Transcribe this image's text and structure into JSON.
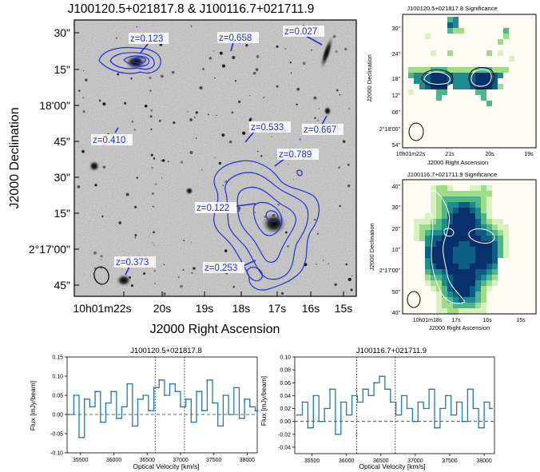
{
  "figure": {
    "title": "J100120.5+021817.8 & J100116.7+021711.9"
  },
  "main_panel": {
    "xlabel": "J2000 Right Ascension",
    "ylabel": "J2000 Declination",
    "x_ticks": [
      "10h01m22s",
      "20s",
      "19s",
      "18s",
      "17s",
      "16s",
      "15s"
    ],
    "y_ticks": [
      "30\"",
      "15\"",
      "18'00\"",
      "45\"",
      "30\"",
      "15\"",
      "2°17'00\"",
      "45\""
    ],
    "redshift_labels": [
      {
        "text": "z=0.123"
      },
      {
        "text": "z=0.658"
      },
      {
        "text": "z=0.027"
      },
      {
        "text": "z=0.410"
      },
      {
        "text": "z=0.533"
      },
      {
        "text": "z=0.667"
      },
      {
        "text": "z=0.789"
      },
      {
        "text": "z=0.122"
      },
      {
        "text": "z=0.373"
      },
      {
        "text": "z=0.253"
      }
    ]
  },
  "sig_panel_1": {
    "title": "J100120.5+021817.8 Significance",
    "xlabel": "J2000 Right Ascension",
    "ylabel": "J2000 Declination",
    "x_ticks": [
      "10h01m22s",
      "21s",
      "20s",
      "19s"
    ],
    "y_ticks": [
      "30\"",
      "24\"",
      "18\"",
      "12\"",
      "06\"",
      "2°18'00\"",
      "54\""
    ]
  },
  "sig_panel_2": {
    "title": "J100116.7+021711.9 Significance",
    "xlabel": "J2000 Right Ascension",
    "ylabel": "J2000 Declination",
    "x_ticks": [
      "10h01m18s",
      "17s",
      "16s",
      "15s"
    ],
    "y_ticks": [
      "40\"",
      "30\"",
      "20\"",
      "10\"",
      "2°17'00\"",
      "50\"",
      "40\""
    ]
  },
  "chart_data": [
    {
      "type": "line",
      "title": "J100120.5+021817.8",
      "xlabel": "Optical Velocity [km/s]",
      "ylabel": "Flux [mJy/beam]",
      "xlim": [
        35300,
        38150
      ],
      "ylim": [
        -0.1,
        0.15
      ],
      "x_ticks": [
        35500,
        36000,
        36500,
        37000,
        37500,
        38000
      ],
      "y_ticks": [
        -0.1,
        -0.05,
        0.0,
        0.05,
        0.1,
        0.15
      ],
      "y_tick_labels": [
        "-0.10",
        "-0.05",
        "0.00",
        "0.05",
        "0.10",
        "0.15"
      ],
      "vlines": [
        36620,
        37060
      ],
      "hline": 0,
      "series": [
        {
          "name": "spectrum",
          "x": [
            35320,
            35400,
            35480,
            35560,
            35640,
            35720,
            35800,
            35880,
            35960,
            36040,
            36120,
            36200,
            36280,
            36360,
            36440,
            36520,
            36600,
            36680,
            36760,
            36840,
            36920,
            37000,
            37080,
            37160,
            37240,
            37320,
            37400,
            37480,
            37560,
            37640,
            37720,
            37800,
            37880,
            37960,
            38040,
            38120
          ],
          "values": [
            0.0,
            0.05,
            -0.06,
            0.04,
            0.02,
            0.06,
            -0.02,
            0.03,
            0.06,
            -0.01,
            0.02,
            0.08,
            -0.03,
            0.04,
            0.05,
            0.01,
            0.07,
            0.09,
            0.05,
            0.08,
            0.06,
            0.02,
            0.04,
            -0.02,
            0.06,
            0.01,
            0.09,
            0.03,
            -0.03,
            0.05,
            0.0,
            0.07,
            -0.01,
            0.04,
            0.02,
            0.01
          ]
        }
      ]
    },
    {
      "type": "line",
      "title": "J100116.7+021711.9",
      "xlabel": "Optical Velocity [km/s]",
      "ylabel": "Flux [mJy/beam]",
      "xlim": [
        35250,
        38150
      ],
      "ylim": [
        -0.05,
        0.1
      ],
      "x_ticks": [
        35500,
        36000,
        36500,
        37000,
        37500,
        38000
      ],
      "y_ticks": [
        -0.04,
        -0.02,
        0.0,
        0.02,
        0.04,
        0.06,
        0.08,
        0.1
      ],
      "y_tick_labels": [
        "-0.04",
        "-0.02",
        "0.00",
        "0.02",
        "0.04",
        "0.06",
        "0.08",
        "0.10"
      ],
      "vlines": [
        36150,
        36710
      ],
      "hline": 0,
      "series": [
        {
          "name": "spectrum",
          "x": [
            35280,
            35360,
            35440,
            35520,
            35600,
            35680,
            35760,
            35840,
            35920,
            36000,
            36080,
            36160,
            36240,
            36320,
            36400,
            36480,
            36560,
            36640,
            36720,
            36800,
            36880,
            36960,
            37040,
            37120,
            37200,
            37280,
            37360,
            37440,
            37520,
            37600,
            37680,
            37760,
            37840,
            37920,
            38000,
            38080
          ],
          "values": [
            0.01,
            0.03,
            -0.01,
            0.04,
            0.0,
            0.02,
            0.05,
            -0.02,
            0.03,
            0.01,
            0.04,
            0.03,
            0.05,
            0.04,
            0.06,
            0.07,
            0.05,
            0.03,
            0.01,
            0.04,
            0.02,
            0.0,
            0.03,
            0.02,
            0.05,
            -0.01,
            0.02,
            0.04,
            0.01,
            0.03,
            0.0,
            0.05,
            0.02,
            -0.01,
            0.03,
            0.02
          ]
        }
      ]
    }
  ]
}
